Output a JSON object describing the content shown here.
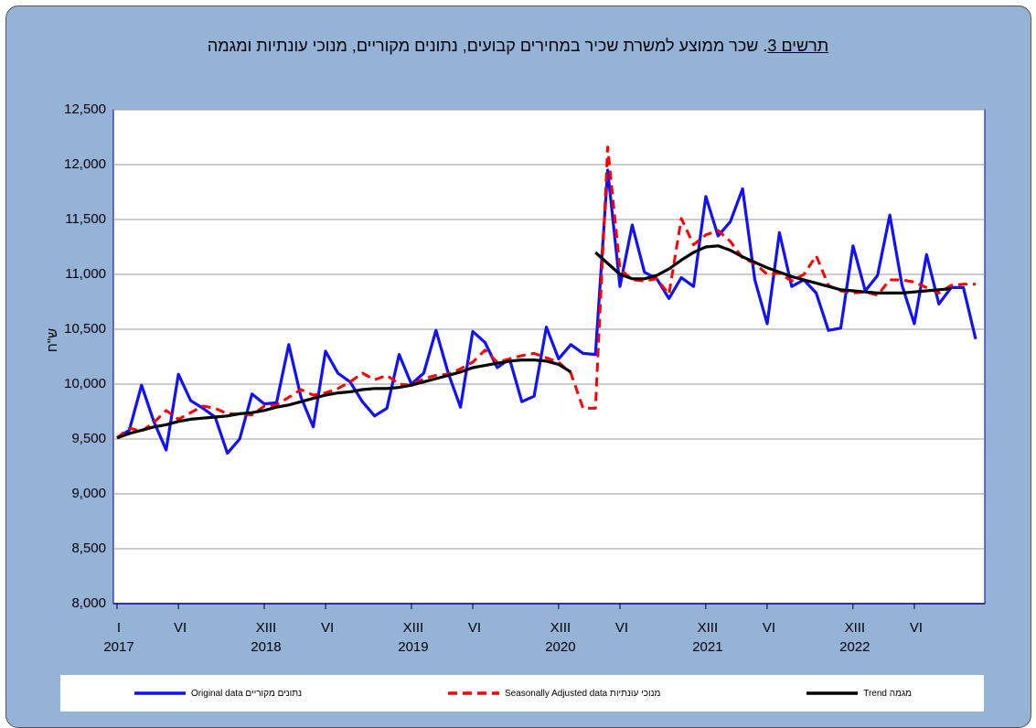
{
  "chart_data": {
    "type": "line",
    "title_label": "תרשים 3",
    "title": ". שכר ממוצע למשרת שכיר במחירים קבועים, נתונים מקוריים, מנוכי עונתיות ומגמה",
    "y_label": "ש\"ח",
    "categories": [
      "I",
      null,
      null,
      null,
      null,
      "VI",
      null,
      null,
      null,
      null,
      null,
      null,
      "XIII",
      null,
      null,
      null,
      null,
      "VI",
      null,
      null,
      null,
      null,
      null,
      null,
      "XIII",
      null,
      null,
      null,
      null,
      "VI",
      null,
      null,
      null,
      null,
      null,
      null,
      "XIII",
      null,
      null,
      null,
      null,
      "VI",
      null,
      null,
      null,
      null,
      null,
      null,
      "XIII",
      null,
      null,
      null,
      null,
      "VI",
      null,
      null,
      null,
      null,
      null,
      null,
      "XIII",
      null,
      null,
      null,
      null,
      "VI",
      null,
      null,
      null,
      null,
      null
    ],
    "year_labels": [
      "2017",
      null,
      null,
      null,
      null,
      null,
      null,
      null,
      null,
      null,
      null,
      null,
      "2018",
      null,
      null,
      null,
      null,
      null,
      null,
      null,
      null,
      null,
      null,
      null,
      "2019",
      null,
      null,
      null,
      null,
      null,
      null,
      null,
      null,
      null,
      null,
      null,
      "2020",
      null,
      null,
      null,
      null,
      null,
      null,
      null,
      null,
      null,
      null,
      null,
      "2021",
      null,
      null,
      null,
      null,
      null,
      null,
      null,
      null,
      null,
      null,
      null,
      "2022",
      null,
      null,
      null,
      null,
      null,
      null,
      null,
      null,
      null,
      null
    ],
    "ylim": [
      8000,
      12500
    ],
    "yticks": [
      {
        "value": 8000,
        "label": "8,000"
      },
      {
        "value": 8500,
        "label": "8,500"
      },
      {
        "value": 9000,
        "label": "9,000"
      },
      {
        "value": 9500,
        "label": "9,500"
      },
      {
        "value": 10000,
        "label": "10,000"
      },
      {
        "value": 10500,
        "label": "10,500"
      },
      {
        "value": 11000,
        "label": "11,000"
      },
      {
        "value": 11500,
        "label": "11,500"
      },
      {
        "value": 12000,
        "label": "12,000"
      },
      {
        "value": 12500,
        "label": "12,500"
      }
    ],
    "grid": true,
    "series": [
      {
        "name": "Original data  נתונים מקוריים",
        "color": "#1010ff",
        "dash": false,
        "values": [
          9510,
          9580,
          9990,
          9660,
          9400,
          10090,
          9850,
          9780,
          9700,
          9370,
          9500,
          9910,
          9820,
          9830,
          10360,
          9880,
          9610,
          10300,
          10100,
          10020,
          9840,
          9710,
          9780,
          10270,
          10000,
          10100,
          10490,
          10100,
          9790,
          10480,
          10380,
          10150,
          10230,
          9840,
          9890,
          10520,
          10230,
          10360,
          10280,
          10270,
          11950,
          10890,
          11450,
          11020,
          10960,
          10780,
          10970,
          10890,
          11710,
          11350,
          11480,
          11780,
          10950,
          10550,
          11380,
          10890,
          10950,
          10830,
          10490,
          10510,
          11260,
          10850,
          10990,
          11540,
          10900,
          10550,
          11180,
          10730,
          10880,
          10880,
          10410
        ]
      },
      {
        "name": "Seasonally Adjusted data  מנוכי עונתיות",
        "color": "#ff0000",
        "dash": true,
        "values": [
          9510,
          9600,
          9570,
          9650,
          9760,
          9680,
          9740,
          9800,
          9780,
          9730,
          9730,
          9720,
          9800,
          9810,
          9880,
          9950,
          9900,
          9920,
          9960,
          10020,
          10100,
          10040,
          10080,
          10000,
          9990,
          10050,
          10080,
          10090,
          10140,
          10200,
          10310,
          10200,
          10230,
          10260,
          10280,
          10240,
          10200,
          10100,
          9780,
          9780,
          12160,
          11050,
          10950,
          10940,
          10960,
          10820,
          11510,
          11270,
          11360,
          11400,
          11300,
          11150,
          11100,
          11000,
          11010,
          10940,
          11000,
          11170,
          10900,
          10850,
          10830,
          10840,
          10810,
          10950,
          10950,
          10930,
          10880,
          10830,
          10900,
          10910,
          10910
        ]
      },
      {
        "name": "Trend  מגמה",
        "color": "#000000",
        "dash": false,
        "values": [
          9510,
          9550,
          9580,
          9610,
          9630,
          9660,
          9680,
          9690,
          9700,
          9710,
          9730,
          9740,
          9760,
          9790,
          9810,
          9840,
          9870,
          9900,
          9920,
          9930,
          9950,
          9960,
          9960,
          9970,
          9990,
          10020,
          10050,
          10080,
          10110,
          10150,
          10170,
          10190,
          10210,
          10220,
          10220,
          10210,
          10180,
          10110,
          null,
          11200,
          11100,
          11000,
          10960,
          10960,
          10990,
          11050,
          11130,
          11200,
          11250,
          11260,
          11220,
          11160,
          11110,
          11060,
          11020,
          10980,
          10950,
          10920,
          10890,
          10860,
          10850,
          10840,
          10830,
          10830,
          10830,
          10840,
          10850,
          10860,
          10870,
          null,
          null
        ]
      }
    ]
  }
}
